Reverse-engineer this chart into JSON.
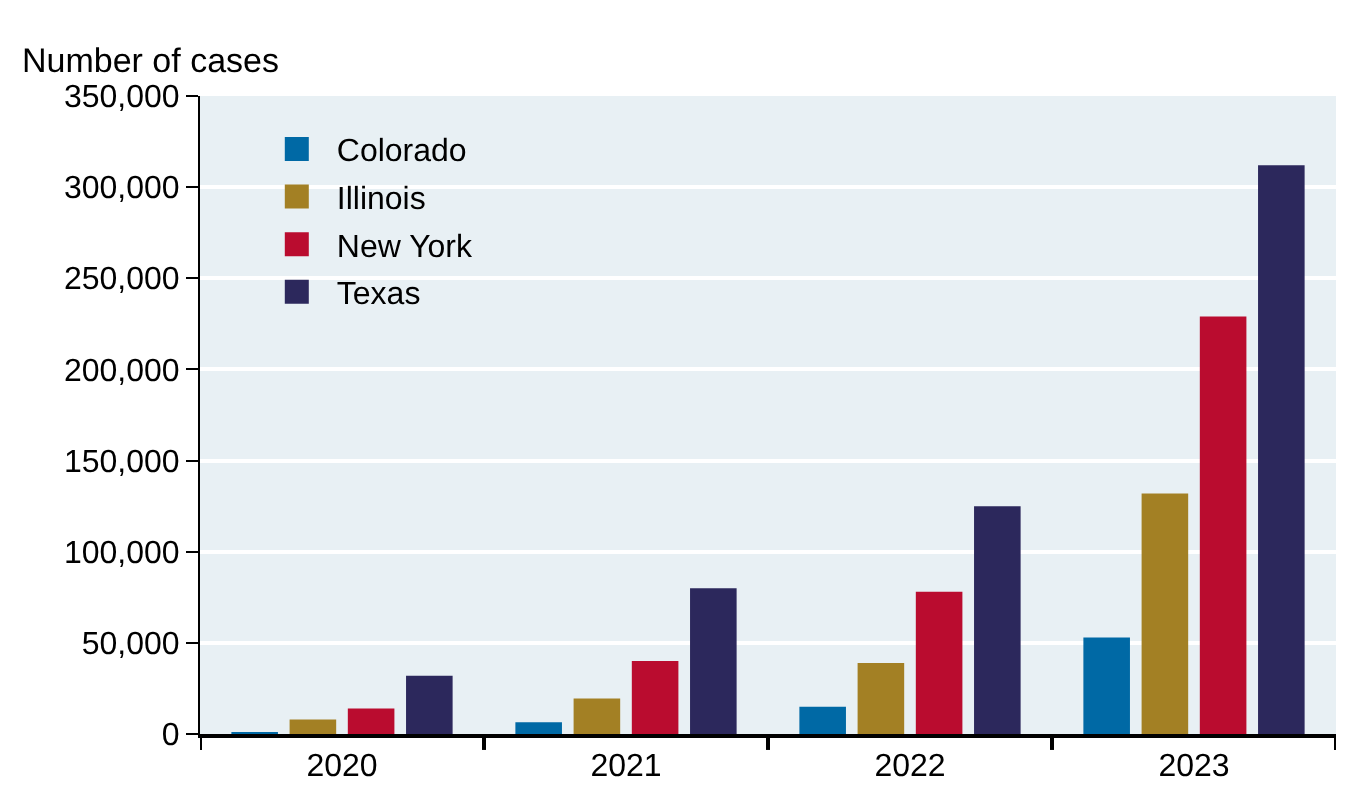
{
  "chart_data": {
    "type": "bar",
    "ylabel": "Number of cases",
    "categories": [
      "2020",
      "2021",
      "2022",
      "2023"
    ],
    "series": [
      {
        "name": "Colorado",
        "color": "#0069a5",
        "values": [
          500,
          6500,
          15000,
          53000
        ]
      },
      {
        "name": "Illinois",
        "color": "#a38024",
        "values": [
          8000,
          19500,
          39000,
          132000
        ]
      },
      {
        "name": "New York",
        "color": "#ba0c2f",
        "values": [
          14000,
          40000,
          78000,
          229000
        ]
      },
      {
        "name": "Texas",
        "color": "#2c285c",
        "values": [
          32000,
          80000,
          125000,
          312000
        ]
      }
    ],
    "ylim": [
      0,
      350000
    ],
    "yticks": [
      {
        "value": 0,
        "label": "0"
      },
      {
        "value": 50000,
        "label": "50,000"
      },
      {
        "value": 100000,
        "label": "100,000"
      },
      {
        "value": 150000,
        "label": "150,000"
      },
      {
        "value": 200000,
        "label": "200,000"
      },
      {
        "value": 250000,
        "label": "250,000"
      },
      {
        "value": 300000,
        "label": "300,000"
      },
      {
        "value": 350000,
        "label": "350,000"
      }
    ],
    "grid": "y",
    "legend": "top left"
  }
}
